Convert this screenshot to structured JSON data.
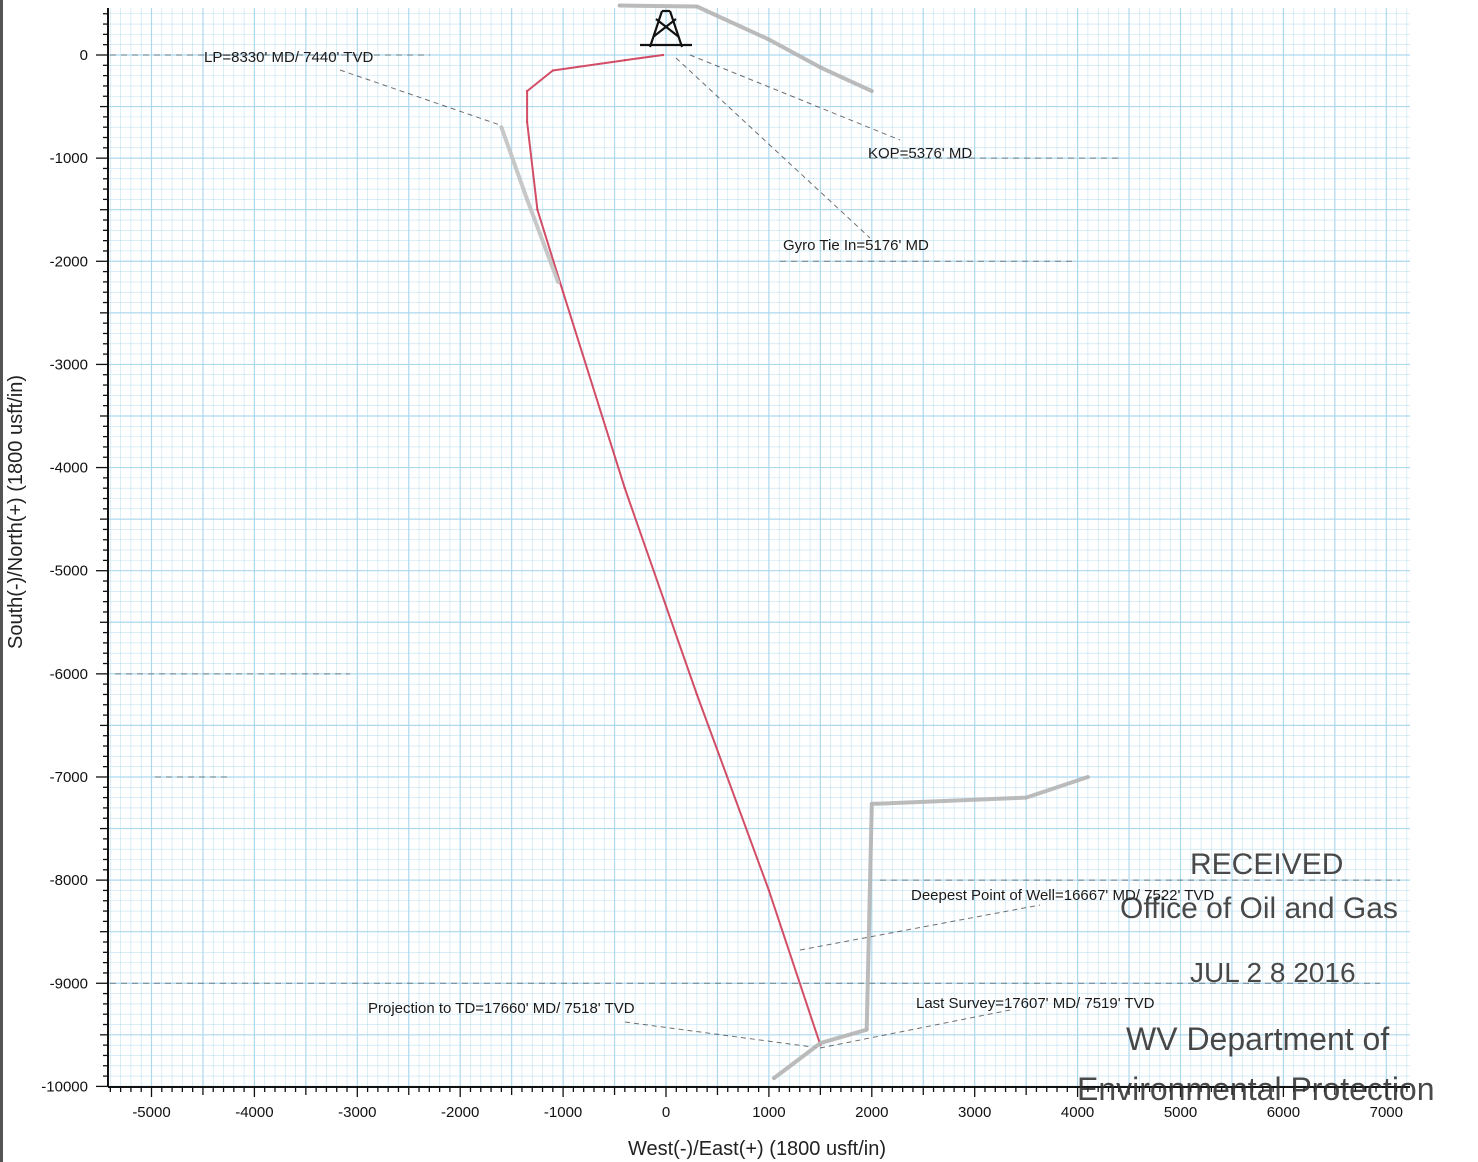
{
  "chart_data": {
    "type": "line",
    "xlabel": "West(-)/East(+) (1800 usft/in)",
    "ylabel": "South(-)/North(+) (1800 usft/in)",
    "xlim": [
      -5500,
      7300
    ],
    "ylim": [
      -10000,
      450
    ],
    "xticks": [
      -5000,
      -4000,
      -3000,
      -2000,
      -1000,
      0,
      1000,
      2000,
      3000,
      4000,
      5000,
      6000,
      7000
    ],
    "yticks": [
      0,
      -1000,
      -2000,
      -3000,
      -4000,
      -5000,
      -6000,
      -7000,
      -8000,
      -9000,
      -10000
    ],
    "grid": true,
    "series": [
      {
        "color": "#d0455e",
        "x": [
          -30,
          -400,
          -1100,
          -1350,
          -1350,
          -1250,
          -1000,
          -400,
          300,
          1000,
          1500
        ],
        "y": [
          0,
          -50,
          -150,
          -350,
          -650,
          -1500,
          -2300,
          -4200,
          -6200,
          -8100,
          -9600
        ]
      },
      {
        "color": "#b4b4b4",
        "x": [
          -450,
          300,
          1000,
          1500,
          2000
        ],
        "y": [
          480,
          470,
          150,
          -120,
          -350
        ]
      },
      {
        "color": "#b4b4b4",
        "x": [
          1050,
          1500,
          1950,
          2000,
          2050,
          3500,
          4100
        ],
        "y": [
          -9920,
          -9580,
          -9450,
          -7260,
          -7260,
          -7200,
          -7000
        ]
      },
      {
        "color": "#c2c2c2",
        "x": [
          -1600,
          -1350,
          -1050
        ],
        "y": [
          -700,
          -1400,
          -2200
        ]
      }
    ],
    "annotations": [
      "LP=8330' MD/ 7440' TVD",
      "KOP=5376' MD",
      "Gyro Tie In=5176' MD",
      "Deepest Point of Well=16667' MD/ 7522' TVD",
      "Last Survey=17607' MD/ 7519' TVD",
      "Projection to TD=17660' MD/ 7518' TVD"
    ],
    "colors": {
      "grid": "#a9d6ee",
      "trajectory": "#d0455e",
      "offset_wells": "#b4b4b4"
    }
  },
  "stamp": {
    "line1": "RECEIVED",
    "line2": "Office of Oil and Gas",
    "line3": "JUL 2 8 2016",
    "line4": "WV Department of",
    "line5": "Environmental Protection"
  }
}
